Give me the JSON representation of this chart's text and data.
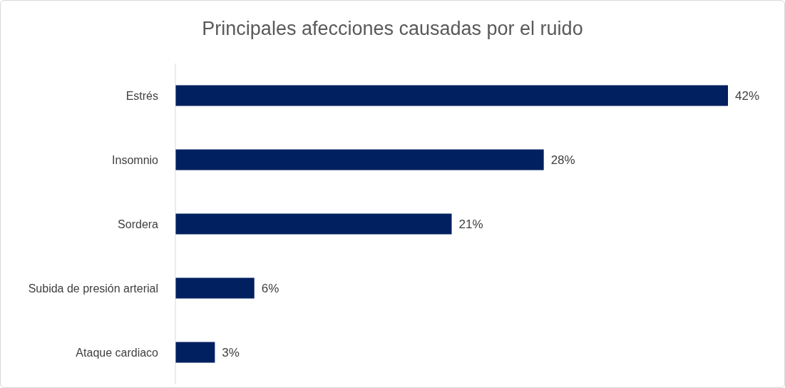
{
  "chart_data": {
    "type": "bar",
    "orientation": "horizontal",
    "title": "Principales afecciones causadas por el ruido",
    "categories": [
      "Estrés",
      "Insomnio",
      "Sordera",
      "Subida de presión arterial",
      "Ataque cardiaco"
    ],
    "values": [
      42,
      28,
      21,
      6,
      3
    ],
    "value_labels": [
      "42%",
      "28%",
      "21%",
      "6%",
      "3%"
    ],
    "color": "#002060",
    "grid": false,
    "legend": false
  }
}
